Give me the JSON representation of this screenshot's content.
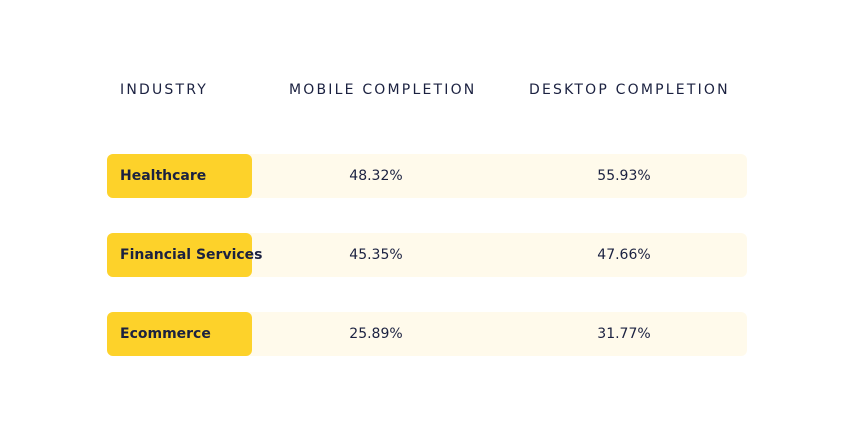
{
  "chart_data": {
    "type": "table",
    "columns": [
      "INDUSTRY",
      "MOBILE COMPLETION",
      "DESKTOP COMPLETION"
    ],
    "rows": [
      {
        "industry": "Healthcare",
        "mobile": "48.32%",
        "desktop": "55.93%"
      },
      {
        "industry": "Financial Services",
        "mobile": "45.35%",
        "desktop": "47.66%"
      },
      {
        "industry": "Ecommerce",
        "mobile": "25.89%",
        "desktop": "31.77%"
      }
    ],
    "colors": {
      "label_bg": "#fdd22a",
      "row_bg": "#fffaeb",
      "text": "#1b2140"
    }
  }
}
